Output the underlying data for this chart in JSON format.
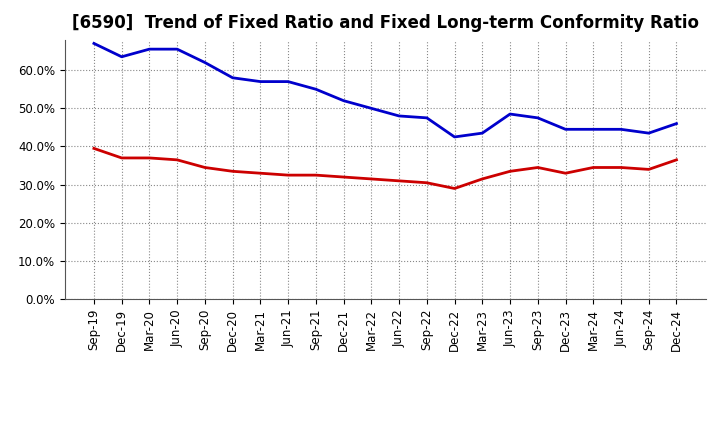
{
  "title": "[6590]  Trend of Fixed Ratio and Fixed Long-term Conformity Ratio",
  "x_labels": [
    "Sep-19",
    "Dec-19",
    "Mar-20",
    "Jun-20",
    "Sep-20",
    "Dec-20",
    "Mar-21",
    "Jun-21",
    "Sep-21",
    "Dec-21",
    "Mar-22",
    "Jun-22",
    "Sep-22",
    "Dec-22",
    "Mar-23",
    "Jun-23",
    "Sep-23",
    "Dec-23",
    "Mar-24",
    "Jun-24",
    "Sep-24",
    "Dec-24"
  ],
  "fixed_ratio": [
    67.0,
    63.5,
    65.5,
    65.5,
    62.0,
    58.0,
    57.0,
    57.0,
    55.0,
    52.0,
    50.0,
    48.0,
    47.5,
    42.5,
    43.5,
    48.5,
    47.5,
    44.5,
    44.5,
    44.5,
    43.5,
    46.0
  ],
  "fixed_lt_ratio": [
    39.5,
    37.0,
    37.0,
    36.5,
    34.5,
    33.5,
    33.0,
    32.5,
    32.5,
    32.0,
    31.5,
    31.0,
    30.5,
    29.0,
    31.5,
    33.5,
    34.5,
    33.0,
    34.5,
    34.5,
    34.0,
    36.5
  ],
  "fixed_ratio_color": "#0000CC",
  "fixed_lt_ratio_color": "#CC0000",
  "ylim": [
    0,
    68
  ],
  "yticks": [
    0,
    10,
    20,
    30,
    40,
    50,
    60
  ],
  "background_color": "#FFFFFF",
  "plot_background_color": "#FFFFFF",
  "grid_color": "#888888",
  "legend_fixed_ratio": "Fixed Ratio",
  "legend_fixed_lt_ratio": "Fixed Long-term Conformity Ratio",
  "line_width": 2.0,
  "title_fontsize": 12,
  "tick_fontsize": 8.5
}
